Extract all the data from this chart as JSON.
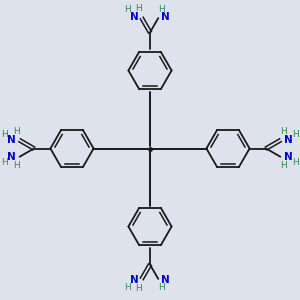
{
  "background_color": "#dde2ec",
  "bond_color": "#1a1a1a",
  "nitrogen_color": "#0000cc",
  "nh_color": "#2e8b57",
  "figsize": [
    3.0,
    3.0
  ],
  "dpi": 100,
  "xlim": [
    0,
    10
  ],
  "ylim": [
    0,
    10
  ]
}
